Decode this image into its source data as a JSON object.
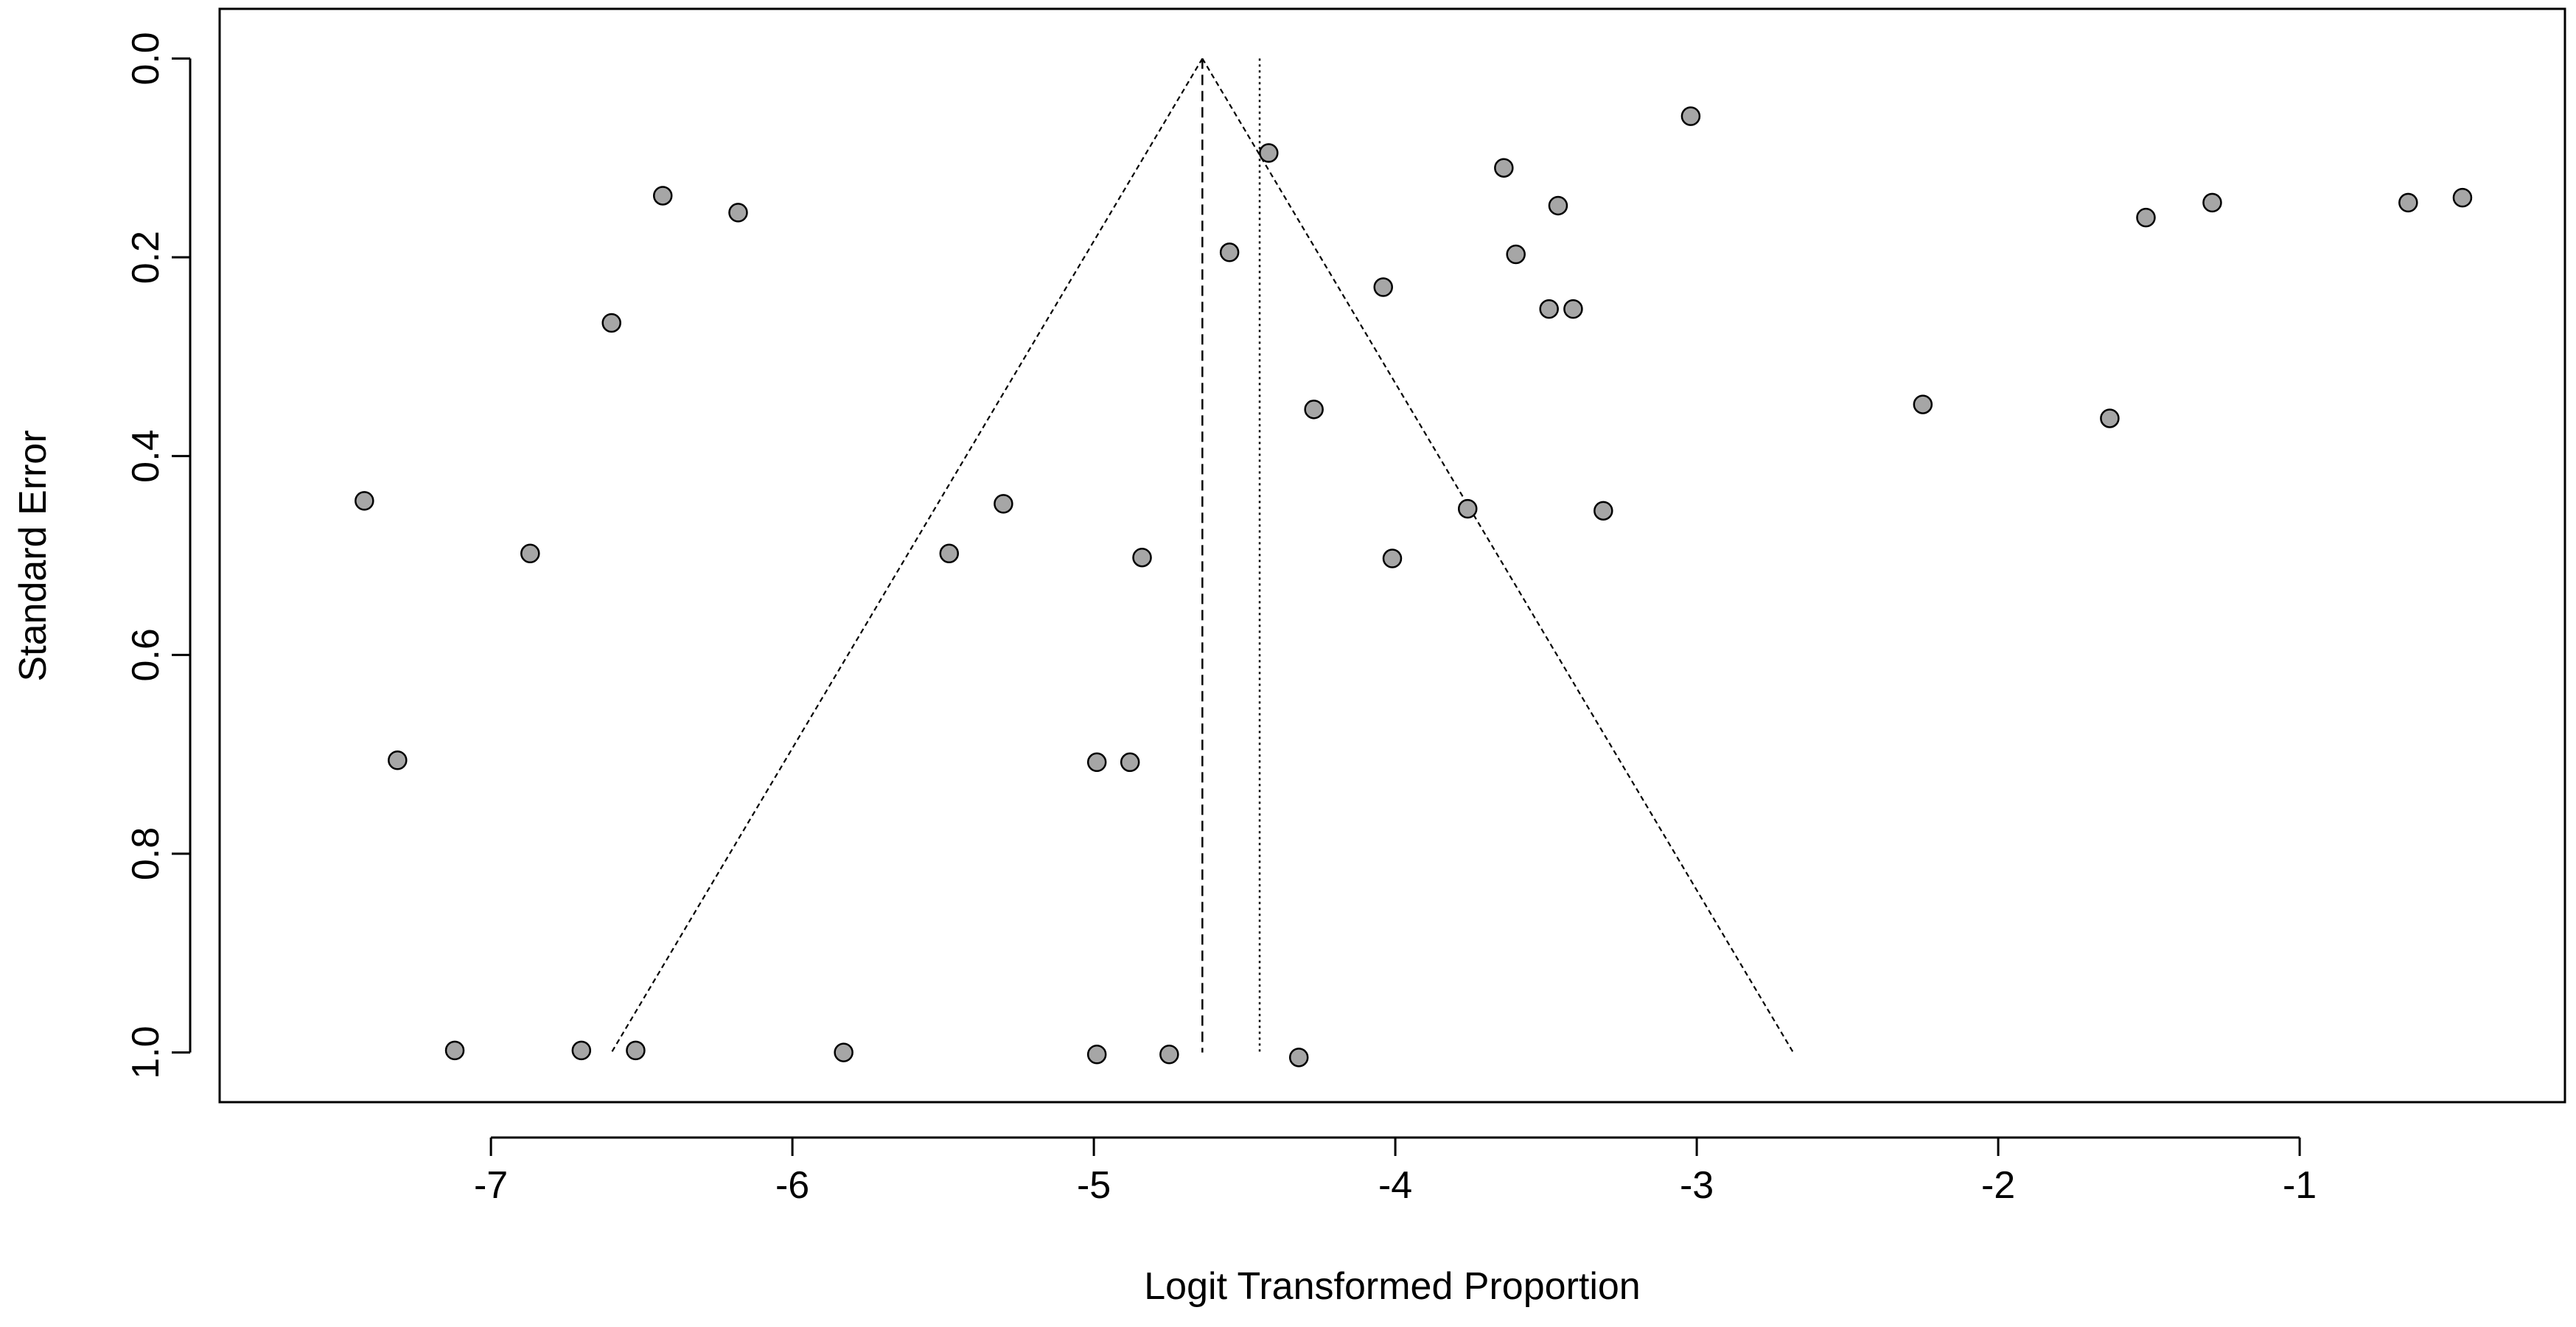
{
  "chart_data": {
    "type": "scatter",
    "title": "",
    "xlabel": "Logit Transformed Proportion",
    "ylabel": "Standard Error",
    "xlim": [
      -7.9,
      -0.12
    ],
    "ylim": [
      1.05,
      -0.05
    ],
    "y_axis_inverted": true,
    "grid": false,
    "legend": "none",
    "x_ticks": [
      -7,
      -6,
      -5,
      -4,
      -3,
      -2,
      -1
    ],
    "x_tick_labels": [
      "-7",
      "-6",
      "-5",
      "-4",
      "-3",
      "-2",
      "-1"
    ],
    "y_ticks": [
      0.0,
      0.2,
      0.4,
      0.6,
      0.8,
      1.0
    ],
    "y_tick_labels": [
      "0.0",
      "0.2",
      "0.4",
      "0.6",
      "0.8",
      "1.0"
    ],
    "funnel": {
      "apex": [
        -4.64,
        0.0
      ],
      "left_base": [
        -6.6,
        1.0
      ],
      "right_base": [
        -2.68,
        1.0
      ],
      "pooled_estimate_line_x": -4.64,
      "reference_line_x": -4.45
    },
    "point_color": "#a6a6a6",
    "series": [
      {
        "name": "",
        "points": [
          {
            "x": -7.42,
            "y": 0.445
          },
          {
            "x": -7.31,
            "y": 0.706
          },
          {
            "x": -7.12,
            "y": 0.998
          },
          {
            "x": -6.87,
            "y": 0.498
          },
          {
            "x": -6.7,
            "y": 0.998
          },
          {
            "x": -6.6,
            "y": 0.266
          },
          {
            "x": -6.52,
            "y": 0.998
          },
          {
            "x": -6.43,
            "y": 0.138
          },
          {
            "x": -6.18,
            "y": 0.155
          },
          {
            "x": -5.83,
            "y": 1.0
          },
          {
            "x": -5.48,
            "y": 0.498
          },
          {
            "x": -5.3,
            "y": 0.448
          },
          {
            "x": -4.99,
            "y": 0.708
          },
          {
            "x": -4.99,
            "y": 1.002
          },
          {
            "x": -4.88,
            "y": 0.708
          },
          {
            "x": -4.84,
            "y": 0.502
          },
          {
            "x": -4.75,
            "y": 1.002
          },
          {
            "x": -4.55,
            "y": 0.195
          },
          {
            "x": -4.42,
            "y": 0.095
          },
          {
            "x": -4.32,
            "y": 1.005
          },
          {
            "x": -4.27,
            "y": 0.353
          },
          {
            "x": -4.04,
            "y": 0.23
          },
          {
            "x": -4.01,
            "y": 0.503
          },
          {
            "x": -3.76,
            "y": 0.453
          },
          {
            "x": -3.64,
            "y": 0.11
          },
          {
            "x": -3.6,
            "y": 0.197
          },
          {
            "x": -3.49,
            "y": 0.252
          },
          {
            "x": -3.46,
            "y": 0.148
          },
          {
            "x": -3.41,
            "y": 0.252
          },
          {
            "x": -3.31,
            "y": 0.455
          },
          {
            "x": -3.02,
            "y": 0.058
          },
          {
            "x": -2.25,
            "y": 0.348
          },
          {
            "x": -1.63,
            "y": 0.362
          },
          {
            "x": -1.51,
            "y": 0.16
          },
          {
            "x": -1.29,
            "y": 0.145
          },
          {
            "x": -0.64,
            "y": 0.145
          },
          {
            "x": -0.46,
            "y": 0.14
          }
        ]
      }
    ]
  }
}
